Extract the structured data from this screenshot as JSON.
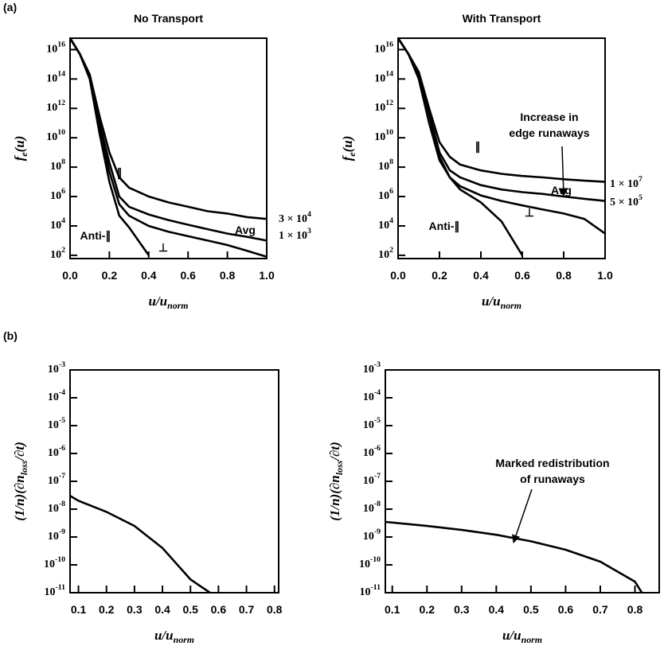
{
  "panel_labels": [
    "(a)",
    "(b)"
  ],
  "chart_data": [
    {
      "type": "line",
      "title": "No Transport",
      "xlabel": "u/u_{norm}",
      "ylabel": "f_{e}(u)",
      "ylog": true,
      "grid": false,
      "x": [
        0,
        0.05,
        0.1,
        0.15,
        0.2,
        0.25,
        0.3,
        0.4,
        0.5,
        0.6,
        0.7,
        0.8,
        0.9,
        1.0
      ],
      "xlim": [
        0,
        1
      ],
      "ylim": [
        60,
        6e+16
      ],
      "xticks": [
        {
          "value": 0,
          "label": "0.0"
        },
        0.2,
        0.4,
        0.6,
        0.8,
        {
          "value": 1,
          "label": "1.0"
        }
      ],
      "yticks": [
        {
          "value": 100.0,
          "label": "10^{2}"
        },
        {
          "value": 10000.0,
          "label": "10^{4}"
        },
        {
          "value": 1000000.0,
          "label": "10^{6}"
        },
        {
          "value": 100000000.0,
          "label": "10^{8}"
        },
        {
          "value": 10000000000.0,
          "label": "10^{10}"
        },
        {
          "value": 1000000000000.0,
          "label": "10^{12}"
        },
        {
          "value": 100000000000000.0,
          "label": "10^{14}"
        },
        {
          "value": 1e+16,
          "label": "10^{16}"
        }
      ],
      "series": [
        {
          "name": "∥",
          "color": "#000000",
          "values": [
            6e+16,
            5000000000000000.0,
            200000000000000.0,
            300000000000.0,
            1000000000.0,
            20000000.0,
            4000000.0,
            1000000.0,
            400000.0,
            200000.0,
            100000.0,
            70000.0,
            40000.0,
            30000.0
          ]
        },
        {
          "name": "Avg",
          "color": "#000000",
          "values": [
            6e+16,
            5000000000000000.0,
            150000000000000.0,
            100000000000.0,
            200000000.0,
            1000000.0,
            200000.0,
            60000.0,
            25000.0,
            12000.0,
            6000.0,
            3000.0,
            1800.0,
            1000.0
          ]
        },
        {
          "name": "⊥",
          "color": "#000000",
          "values": [
            6e+16,
            5000000000000000.0,
            150000000000000.0,
            60000000000.0,
            50000000.0,
            300000.0,
            50000.0,
            10000.0,
            4000.0,
            2000.0,
            1000.0,
            500,
            200,
            80
          ]
        },
        {
          "name": "Anti-∥",
          "color": "#000000",
          "values": [
            6e+16,
            5000000000000000.0,
            100000000000000.0,
            20000000000.0,
            10000000.0,
            50000.0,
            8000.0,
            100,
            null,
            null,
            null,
            null,
            null,
            null
          ]
        }
      ],
      "annotations": [
        {
          "text": "3 × 10^{4}"
        },
        {
          "text": "1 × 10^{3}"
        }
      ]
    },
    {
      "type": "line",
      "title": "With Transport",
      "xlabel": "u/u_{norm}",
      "ylabel": "f_{e}(u)",
      "ylog": true,
      "grid": false,
      "x": [
        0,
        0.05,
        0.1,
        0.15,
        0.2,
        0.25,
        0.3,
        0.4,
        0.5,
        0.6,
        0.7,
        0.8,
        0.9,
        1.0
      ],
      "xlim": [
        0,
        1
      ],
      "ylim": [
        60,
        6e+16
      ],
      "xticks": [
        {
          "value": 0,
          "label": "0.0"
        },
        0.2,
        0.4,
        0.6,
        0.8,
        {
          "value": 1,
          "label": "1.0"
        }
      ],
      "yticks": [
        {
          "value": 100.0,
          "label": "10^{2}"
        },
        {
          "value": 10000.0,
          "label": "10^{4}"
        },
        {
          "value": 1000000.0,
          "label": "10^{6}"
        },
        {
          "value": 100000000.0,
          "label": "10^{8}"
        },
        {
          "value": 10000000000.0,
          "label": "10^{10}"
        },
        {
          "value": 1000000000000.0,
          "label": "10^{12}"
        },
        {
          "value": 100000000000000.0,
          "label": "10^{14}"
        },
        {
          "value": 1e+16,
          "label": "10^{16}"
        }
      ],
      "series": [
        {
          "name": "∥",
          "color": "#000000",
          "values": [
            6e+16,
            5000000000000000.0,
            300000000000000.0,
            1000000000000.0,
            5000000000.0,
            500000000.0,
            150000000.0,
            60000000.0,
            35000000.0,
            25000000.0,
            20000000.0,
            15000000.0,
            12000000.0,
            10000000.0
          ]
        },
        {
          "name": "Avg",
          "color": "#000000",
          "values": [
            6e+16,
            5000000000000000.0,
            200000000000000.0,
            500000000000.0,
            1000000000.0,
            60000000.0,
            20000000.0,
            6000000.0,
            3000000.0,
            2000000.0,
            1500000.0,
            1000000.0,
            700000.0,
            500000.0
          ]
        },
        {
          "name": "⊥",
          "color": "#000000",
          "values": [
            6e+16,
            5000000000000000.0,
            200000000000000.0,
            400000000000.0,
            500000000.0,
            20000000.0,
            5000000.0,
            1200000.0,
            500000.0,
            250000.0,
            130000.0,
            70000.0,
            30000.0,
            3000.0
          ]
        },
        {
          "name": "Anti-∥",
          "color": "#000000",
          "values": [
            6e+16,
            5000000000000000.0,
            100000000000000.0,
            100000000000.0,
            300000000.0,
            20000000.0,
            3000000.0,
            400000.0,
            20000.0,
            100,
            null,
            null,
            null,
            null
          ]
        }
      ],
      "annotations": [
        {
          "text": "1 × 10^{7}"
        },
        {
          "text": "5 × 10^{5}"
        },
        {
          "lines": [
            "Increase in",
            "edge runaways"
          ]
        }
      ]
    },
    {
      "type": "line",
      "xlabel": "u/u_{norm}",
      "ylabel": "(1/n)(∂n_{loss}/∂t)",
      "ylog": true,
      "grid": false,
      "x": [
        0.07,
        0.1,
        0.2,
        0.3,
        0.4,
        0.5,
        0.57
      ],
      "xlim": [
        0.07,
        0.815
      ],
      "ylim": [
        1e-11,
        0.001
      ],
      "xticks": [
        0.1,
        0.2,
        0.3,
        0.4,
        0.5,
        0.6,
        0.7,
        0.8
      ],
      "yticks": [
        {
          "value": 1e-11,
          "label": "10^{-11}"
        },
        {
          "value": 1e-10,
          "label": "10^{-10}"
        },
        {
          "value": 1e-09,
          "label": "10^{-9}"
        },
        {
          "value": 1e-08,
          "label": "10^{-8}"
        },
        {
          "value": 1e-07,
          "label": "10^{-7}"
        },
        {
          "value": 1e-06,
          "label": "10^{-6}"
        },
        {
          "value": 1e-05,
          "label": "10^{-5}"
        },
        {
          "value": 0.0001,
          "label": "10^{-4}"
        },
        {
          "value": 0.001,
          "label": "10^{-3}"
        }
      ],
      "series": [
        {
          "color": "#000000",
          "values": [
            3e-08,
            2e-08,
            8e-09,
            2.5e-09,
            4e-10,
            3e-11,
            1e-11
          ]
        }
      ]
    },
    {
      "type": "line",
      "xlabel": "u/u_{norm}",
      "ylabel": "(1/n)(∂n_{loss}/∂t)",
      "ylog": true,
      "grid": false,
      "x": [
        0.08,
        0.2,
        0.3,
        0.4,
        0.5,
        0.6,
        0.7,
        0.8,
        0.82
      ],
      "xlim": [
        0.08,
        0.87
      ],
      "ylim": [
        1e-11,
        0.001
      ],
      "xticks": [
        0.1,
        0.2,
        0.3,
        0.4,
        0.5,
        0.6,
        0.7,
        0.8
      ],
      "yticks": [
        {
          "value": 1e-11,
          "label": "10^{-11}"
        },
        {
          "value": 1e-10,
          "label": "10^{-10}"
        },
        {
          "value": 1e-09,
          "label": "10^{-9}"
        },
        {
          "value": 1e-08,
          "label": "10^{-8}"
        },
        {
          "value": 1e-07,
          "label": "10^{-7}"
        },
        {
          "value": 1e-06,
          "label": "10^{-6}"
        },
        {
          "value": 1e-05,
          "label": "10^{-5}"
        },
        {
          "value": 0.0001,
          "label": "10^{-4}"
        },
        {
          "value": 0.001,
          "label": "10^{-3}"
        }
      ],
      "series": [
        {
          "color": "#000000",
          "values": [
            3.5e-09,
            2.5e-09,
            1.8e-09,
            1.2e-09,
            7e-10,
            3.5e-10,
            1.3e-10,
            2.5e-11,
            1e-11
          ]
        }
      ],
      "annotations": [
        {
          "lines": [
            "Marked redistribution",
            "of runaways"
          ]
        }
      ]
    }
  ]
}
